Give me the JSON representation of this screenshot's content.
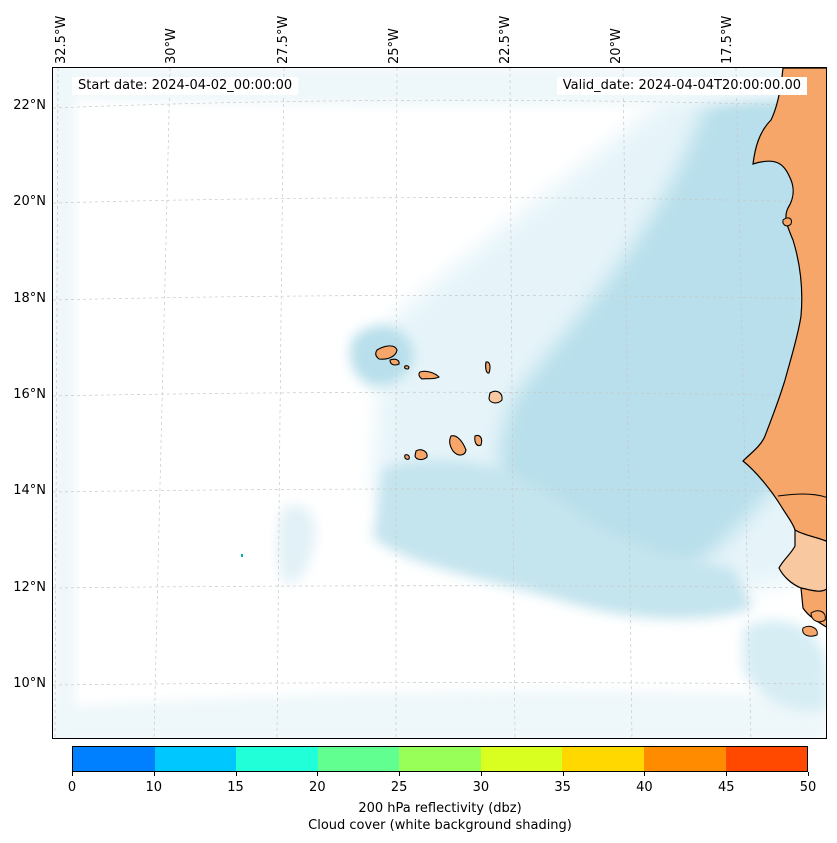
{
  "info": {
    "start_date": "Start date: 2024-04-02_00:00:00",
    "valid_date": "Valid_date: 2024-04-04T20:00:00.00"
  },
  "longitude_labels": [
    "32.5°W",
    "30°W",
    "27.5°W",
    "25°W",
    "22.5°W",
    "20°W",
    "17.5°W"
  ],
  "latitude_labels": [
    "22°N",
    "20°N",
    "18°N",
    "16°N",
    "14°N",
    "12°N",
    "10°N"
  ],
  "colorbar": {
    "colors": [
      "#0080ff",
      "#00c8ff",
      "#20ffd8",
      "#60ff90",
      "#98ff58",
      "#d8ff20",
      "#ffd800",
      "#ff8c00",
      "#ff4800"
    ],
    "ticks": [
      "0",
      "10",
      "15",
      "20",
      "25",
      "30",
      "35",
      "40",
      "45",
      "50"
    ],
    "label": "200 hPa reflectivity (dbz)",
    "sublabel": "Cloud cover (white background shading)"
  },
  "colors": {
    "land": "#f5a668",
    "land_light": "#f8c9a0",
    "cloud": "#a8d8e8",
    "grid": "#c8c8c8"
  }
}
